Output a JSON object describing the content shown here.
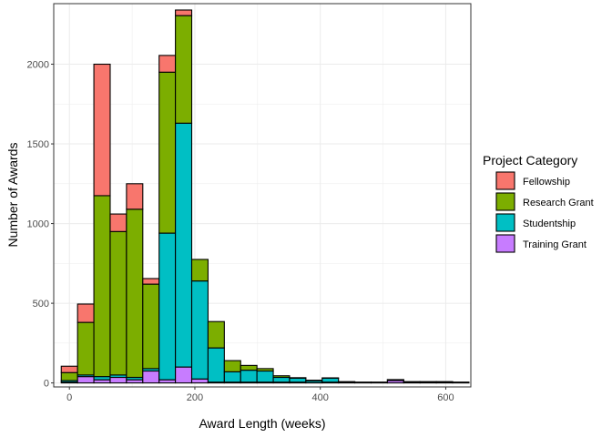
{
  "chart_data": {
    "type": "bar",
    "stacked": true,
    "binwidth": 26,
    "x": [
      0,
      26,
      52,
      78,
      104,
      130,
      156,
      182,
      208,
      234,
      260,
      286,
      312,
      338,
      364,
      390,
      416,
      442,
      468,
      494,
      520,
      546,
      572,
      598,
      624
    ],
    "xlabel": "Award Length (weeks)",
    "ylabel": "Number of Awards",
    "xlim": [
      -25,
      640
    ],
    "ylim": [
      -25,
      2380
    ],
    "xticks": [
      0,
      200,
      400,
      600
    ],
    "yticks": [
      0,
      500,
      1000,
      1500,
      2000
    ],
    "grid": true,
    "legend": {
      "title": "Project Category",
      "placement": "right"
    },
    "series": [
      {
        "name": "Training Grant",
        "color": "#C77CFF",
        "values": [
          5,
          40,
          20,
          35,
          20,
          75,
          20,
          100,
          25,
          5,
          5,
          5,
          5,
          5,
          5,
          2,
          5,
          2,
          2,
          2,
          15,
          2,
          2,
          2,
          2
        ]
      },
      {
        "name": "Studentship",
        "color": "#00BFC4",
        "values": [
          10,
          10,
          20,
          15,
          15,
          15,
          920,
          1530,
          615,
          215,
          65,
          75,
          70,
          30,
          25,
          12,
          25,
          5,
          2,
          2,
          5,
          5,
          5,
          5,
          2
        ]
      },
      {
        "name": "Research Grant",
        "color": "#7CAE00",
        "values": [
          50,
          330,
          1135,
          900,
          1055,
          530,
          1010,
          675,
          135,
          165,
          70,
          30,
          15,
          10,
          3,
          3,
          2,
          1,
          1,
          1,
          1,
          1,
          1,
          1,
          1
        ]
      },
      {
        "name": "Fellowship",
        "color": "#F8766D",
        "values": [
          40,
          115,
          825,
          110,
          160,
          35,
          105,
          35,
          0,
          0,
          0,
          0,
          0,
          0,
          0,
          0,
          0,
          0,
          0,
          0,
          0,
          0,
          0,
          0,
          0
        ]
      }
    ],
    "legend_order": [
      "Fellowship",
      "Research Grant",
      "Studentship",
      "Training Grant"
    ]
  }
}
